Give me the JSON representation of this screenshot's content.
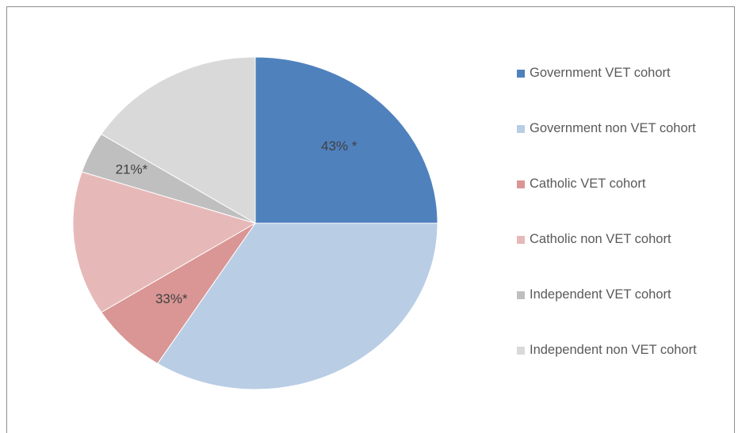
{
  "chart_data": {
    "type": "pie",
    "categories": [
      "Government VET cohort",
      "Government non VET cohort",
      "Catholic VET cohort",
      "Catholic non VET cohort",
      "Independent VET cohort",
      "Independent non VET cohort"
    ],
    "values": [
      25,
      34,
      7,
      14,
      4,
      16
    ],
    "colors": [
      "#4f81bd",
      "#b9cde5",
      "#d99694",
      "#e6b9b8",
      "#bfbfbf",
      "#d9d9d9"
    ],
    "annotations": [
      "43% *",
      null,
      "33%*",
      null,
      "21%*",
      null
    ],
    "legend": "right"
  }
}
